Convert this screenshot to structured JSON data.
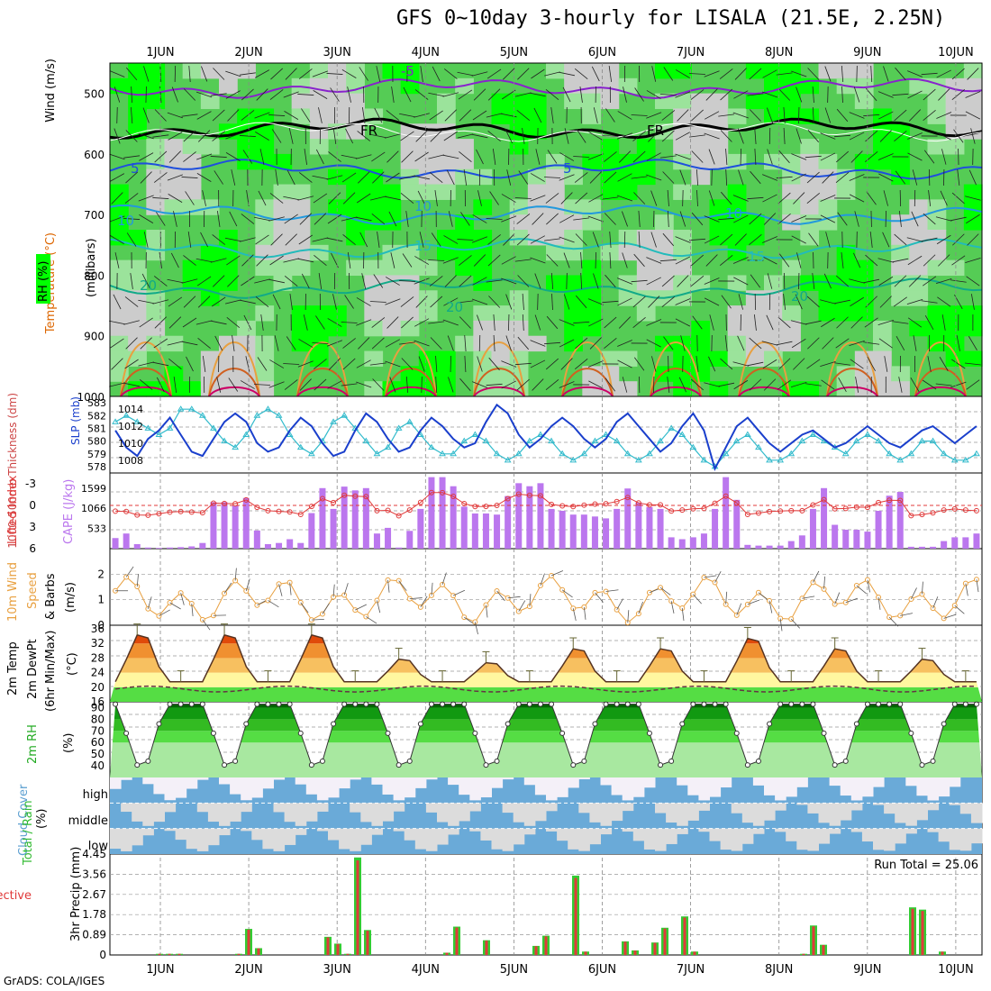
{
  "title": "GFS 0~10day 3-hourly for LISALA (21.5E, 2.25N)",
  "footer": "GrADS: COLA/IGES",
  "dates": [
    "1JUN",
    "2JUN",
    "3JUN",
    "4JUN",
    "5JUN",
    "6JUN",
    "7JUN",
    "8JUN",
    "9JUN",
    "10JUN"
  ],
  "panels": {
    "upper_air": {
      "ylabels": [
        "Wind (m/s)",
        "Temperature (°C)",
        "RH (%)",
        "(millibars)"
      ],
      "yticks": [
        500,
        600,
        700,
        800,
        900,
        1000
      ],
      "contour_labels": [
        "-5",
        "FR",
        "FR",
        "5",
        "5",
        "10",
        "10",
        "10",
        "15",
        "15",
        "20",
        "20",
        "20"
      ]
    },
    "thickness_slp": {
      "ylabel_left": "1000-500mb Thickness (dm)",
      "ylabel_right": "SLP (mb)",
      "left_ticks": [
        578,
        579,
        580,
        581,
        582,
        583
      ],
      "right_ticks": [
        1008,
        1010,
        1012,
        1014
      ]
    },
    "cape_li": {
      "ylabel_left": "Lifted Index",
      "ylabel_right": "CAPE (J/kg)",
      "left_ticks": [
        -3,
        0,
        3,
        6
      ],
      "right_ticks": [
        533,
        1066,
        1599
      ]
    },
    "wind10m": {
      "ylabel": [
        "10m Wind",
        "Speed",
        "& Barbs",
        "(m/s)"
      ],
      "ticks": [
        0,
        1,
        2
      ]
    },
    "temp2m": {
      "ylabel": [
        "2m Temp",
        "2m DewPt",
        "(6hr Min/Max)",
        "(°C)"
      ],
      "ticks": [
        16,
        20,
        24,
        28,
        32,
        36
      ]
    },
    "rh2m": {
      "ylabel": [
        "2m RH",
        "(%)"
      ],
      "ticks": [
        40,
        50,
        60,
        70,
        80,
        90
      ]
    },
    "cloud": {
      "ylabel": [
        "Cloud Cover",
        "(%)"
      ],
      "levels": [
        "high",
        "middle",
        "low"
      ]
    },
    "precip": {
      "ylabel_left": [
        "Total / Rain",
        "Convective"
      ],
      "ylabel_right": "3hr Precip (mm)",
      "ticks": [
        "0",
        "0.89",
        "1.78",
        "2.67",
        "3.56",
        "4.45"
      ],
      "run_total": "Run Total = 25.06"
    }
  },
  "colors": {
    "rh_green": "#00ff00",
    "rh_mid": "#55cc55",
    "rh_light": "#9be39b",
    "rh_gray": "#cccccc",
    "slp": "#1a3fcc",
    "thickness": "#33bbcc",
    "li": "#e03a3a",
    "cape": "#bb77ee",
    "wind": "#e8a040",
    "temp_hot": "#e84a0a",
    "rh_dark": "#008800",
    "cloud": "#6aaad8",
    "precip_total": "#33cc33",
    "precip_conv": "#e03a3a"
  },
  "chart_data": {
    "type": "line",
    "x": [
      "1JUN",
      "2JUN",
      "3JUN",
      "4JUN",
      "5JUN",
      "6JUN",
      "7JUN",
      "8JUN",
      "9JUN",
      "10JUN"
    ],
    "slp_mb": [
      1011.5,
      1009.5,
      1008.5,
      1010.5,
      1011.5,
      1013.0,
      1011.0,
      1009.0,
      1008.5,
      1010.5,
      1012.5,
      1013.5,
      1012.5,
      1010.0,
      1009.0,
      1009.5,
      1011.5,
      1013.0,
      1012.0,
      1010.0,
      1008.5,
      1009.0,
      1011.5,
      1013.5,
      1012.5,
      1010.5,
      1009.0,
      1009.5,
      1011.5,
      1013.0,
      1012.0,
      1010.5,
      1009.5,
      1010.0,
      1012.5,
      1014.5,
      1013.5,
      1011.0,
      1009.5,
      1010.5,
      1012.0,
      1013.0,
      1012.0,
      1010.5,
      1009.5,
      1010.5,
      1012.5,
      1013.5,
      1012.0,
      1010.5,
      1009.0,
      1010.0,
      1012.0,
      1013.5,
      1011.5,
      1007.0,
      1009.5,
      1012.0,
      1013.0,
      1011.5,
      1010.0,
      1009.0,
      1010.0,
      1011.0,
      1011.5,
      1010.5,
      1009.5,
      1010.0,
      1011.0,
      1012.0,
      1011.0,
      1010.0,
      1009.5,
      1010.5,
      1011.5,
      1012.0,
      1011.0,
      1010.0,
      1011.0,
      1012.0
    ],
    "thickness_dm": [
      581.5,
      582.0,
      581.5,
      581.0,
      580.5,
      581.0,
      582.5,
      582.5,
      582.0,
      581.0,
      580.0,
      579.5,
      580.5,
      582.0,
      582.5,
      582.0,
      580.5,
      579.5,
      579.0,
      580.0,
      581.5,
      582.0,
      581.0,
      580.0,
      579.0,
      579.5,
      581.0,
      581.5,
      580.5,
      579.5,
      579.0,
      579.0,
      580.0,
      580.5,
      580.0,
      579.0,
      578.5,
      579.0,
      580.0,
      580.5,
      580.0,
      579.0,
      578.5,
      579.0,
      580.0,
      580.5,
      580.0,
      579.0,
      578.5,
      579.0,
      580.0,
      581.0,
      580.5,
      579.5,
      578.5,
      578.0,
      579.0,
      580.0,
      580.5,
      579.5,
      578.5,
      578.5,
      579.0,
      580.0,
      580.5,
      580.0,
      579.5,
      579.0,
      580.0,
      580.5,
      580.0,
      579.0,
      578.5,
      579.0,
      580.0,
      580.0,
      579.0,
      578.5,
      578.5,
      579.0
    ],
    "cape_jkg": [
      280,
      400,
      120,
      30,
      20,
      30,
      40,
      60,
      150,
      1230,
      1230,
      1130,
      1340,
      480,
      120,
      150,
      250,
      150,
      940,
      1600,
      1050,
      1640,
      1540,
      1600,
      400,
      550,
      30,
      470,
      1050,
      1890,
      1890,
      1650,
      1110,
      930,
      930,
      900,
      1390,
      1730,
      1650,
      1730,
      1050,
      1000,
      900,
      900,
      850,
      800,
      1050,
      1590,
      1220,
      1100,
      1050,
      300,
      250,
      300,
      400,
      1050,
      1890,
      1290,
      100,
      80,
      80,
      80,
      200,
      350,
      1050,
      1600,
      630,
      500,
      500,
      450,
      1000,
      1400,
      1500,
      50,
      50,
      50,
      200,
      300,
      300,
      400
    ]
  }
}
